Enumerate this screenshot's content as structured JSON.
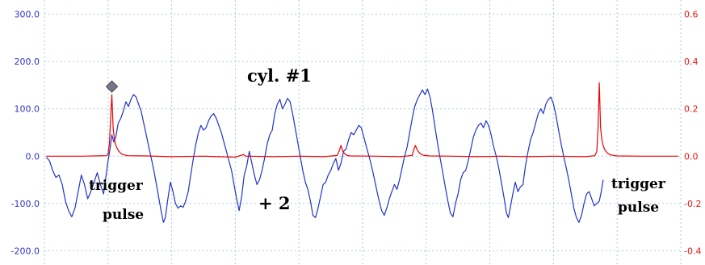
{
  "colors": {
    "left_axis": "#3333cc",
    "right_axis": "#ee1111",
    "series_blue": "#2233cc",
    "series_red": "#ee0000",
    "grid": "#aaccdd",
    "marker": "#777788"
  },
  "chart_data": {
    "type": "line",
    "title": "",
    "xlabel": "",
    "grid": true,
    "x_range": [
      0,
      100
    ],
    "left_axis": {
      "range": [
        -230,
        330
      ],
      "ticks": [
        300,
        200,
        100,
        0,
        -100,
        -200
      ],
      "tick_labels": [
        "300.0",
        "200.0",
        "100.0",
        "0.0",
        "-100.0",
        "-200.0"
      ]
    },
    "right_axis": {
      "range": [
        -0.46,
        0.66
      ],
      "ticks": [
        0.6,
        0.4,
        0.2,
        0.0,
        -0.2,
        -0.4
      ],
      "tick_labels": [
        "0.6",
        "0.4",
        "0.2",
        "0.0",
        "-0.2",
        "-0.4"
      ]
    },
    "series": [
      {
        "axis": "left",
        "color": "#2233cc",
        "points": [
          [
            0.3,
            -2
          ],
          [
            0.8,
            -10
          ],
          [
            1.3,
            -30
          ],
          [
            1.8,
            -45
          ],
          [
            2.3,
            -40
          ],
          [
            2.8,
            -60
          ],
          [
            3.3,
            -95
          ],
          [
            3.8,
            -115
          ],
          [
            4.3,
            -128
          ],
          [
            4.8,
            -110
          ],
          [
            5.3,
            -75
          ],
          [
            5.8,
            -40
          ],
          [
            6.3,
            -60
          ],
          [
            6.8,
            -90
          ],
          [
            7.3,
            -75
          ],
          [
            7.8,
            -55
          ],
          [
            8.3,
            -35
          ],
          [
            8.8,
            -60
          ],
          [
            9.3,
            -80
          ],
          [
            9.6,
            -50
          ],
          [
            10.0,
            -10
          ],
          [
            10.3,
            15
          ],
          [
            10.6,
            45
          ],
          [
            10.9,
            30
          ],
          [
            11.2,
            40
          ],
          [
            11.6,
            70
          ],
          [
            12.0,
            80
          ],
          [
            12.4,
            95
          ],
          [
            12.8,
            115
          ],
          [
            13.2,
            105
          ],
          [
            13.6,
            120
          ],
          [
            14.0,
            130
          ],
          [
            14.4,
            125
          ],
          [
            14.8,
            110
          ],
          [
            15.2,
            95
          ],
          [
            15.6,
            70
          ],
          [
            16.0,
            45
          ],
          [
            16.4,
            20
          ],
          [
            16.8,
            -5
          ],
          [
            17.2,
            -30
          ],
          [
            17.6,
            -60
          ],
          [
            18.0,
            -90
          ],
          [
            18.4,
            -120
          ],
          [
            18.7,
            -140
          ],
          [
            19.0,
            -130
          ],
          [
            19.4,
            -90
          ],
          [
            19.8,
            -55
          ],
          [
            20.2,
            -75
          ],
          [
            20.6,
            -100
          ],
          [
            21.0,
            -110
          ],
          [
            21.4,
            -105
          ],
          [
            21.8,
            -108
          ],
          [
            22.2,
            -95
          ],
          [
            22.6,
            -75
          ],
          [
            23.0,
            -40
          ],
          [
            23.4,
            -5
          ],
          [
            23.8,
            25
          ],
          [
            24.2,
            50
          ],
          [
            24.6,
            65
          ],
          [
            25.0,
            55
          ],
          [
            25.4,
            60
          ],
          [
            25.8,
            75
          ],
          [
            26.2,
            85
          ],
          [
            26.6,
            90
          ],
          [
            27.0,
            80
          ],
          [
            27.4,
            65
          ],
          [
            27.8,
            50
          ],
          [
            28.2,
            30
          ],
          [
            28.6,
            10
          ],
          [
            29.0,
            -10
          ],
          [
            29.4,
            -30
          ],
          [
            29.8,
            -60
          ],
          [
            30.2,
            -90
          ],
          [
            30.6,
            -115
          ],
          [
            31.0,
            -85
          ],
          [
            31.4,
            -40
          ],
          [
            31.8,
            -20
          ],
          [
            32.2,
            10
          ],
          [
            32.6,
            -15
          ],
          [
            33.0,
            -40
          ],
          [
            33.4,
            -60
          ],
          [
            33.8,
            -50
          ],
          [
            34.2,
            -30
          ],
          [
            34.6,
            -5
          ],
          [
            35.0,
            25
          ],
          [
            35.4,
            45
          ],
          [
            35.8,
            55
          ],
          [
            36.2,
            90
          ],
          [
            36.6,
            110
          ],
          [
            37.0,
            120
          ],
          [
            37.4,
            100
          ],
          [
            37.8,
            110
          ],
          [
            38.2,
            122
          ],
          [
            38.6,
            115
          ],
          [
            39.0,
            90
          ],
          [
            39.4,
            60
          ],
          [
            39.8,
            30
          ],
          [
            40.2,
            0
          ],
          [
            40.6,
            -30
          ],
          [
            41.0,
            -55
          ],
          [
            41.4,
            -70
          ],
          [
            41.8,
            -95
          ],
          [
            42.2,
            -125
          ],
          [
            42.6,
            -130
          ],
          [
            43.0,
            -110
          ],
          [
            43.4,
            -85
          ],
          [
            43.8,
            -60
          ],
          [
            44.2,
            -55
          ],
          [
            44.6,
            -40
          ],
          [
            45.0,
            -30
          ],
          [
            45.4,
            -15
          ],
          [
            45.8,
            -5
          ],
          [
            46.2,
            -30
          ],
          [
            46.6,
            -15
          ],
          [
            47.0,
            10
          ],
          [
            47.4,
            15
          ],
          [
            47.8,
            35
          ],
          [
            48.2,
            50
          ],
          [
            48.6,
            45
          ],
          [
            49.0,
            55
          ],
          [
            49.4,
            65
          ],
          [
            49.8,
            60
          ],
          [
            50.2,
            40
          ],
          [
            50.6,
            20
          ],
          [
            51.0,
            0
          ],
          [
            51.4,
            -20
          ],
          [
            51.8,
            -45
          ],
          [
            52.2,
            -70
          ],
          [
            52.6,
            -95
          ],
          [
            53.0,
            -115
          ],
          [
            53.4,
            -125
          ],
          [
            53.8,
            -110
          ],
          [
            54.2,
            -90
          ],
          [
            54.6,
            -75
          ],
          [
            55.0,
            -60
          ],
          [
            55.4,
            -70
          ],
          [
            55.8,
            -50
          ],
          [
            56.2,
            -25
          ],
          [
            56.6,
            0
          ],
          [
            57.0,
            20
          ],
          [
            57.4,
            50
          ],
          [
            57.8,
            80
          ],
          [
            58.2,
            105
          ],
          [
            58.6,
            120
          ],
          [
            59.0,
            130
          ],
          [
            59.4,
            140
          ],
          [
            59.8,
            130
          ],
          [
            60.2,
            142
          ],
          [
            60.6,
            125
          ],
          [
            61.0,
            95
          ],
          [
            61.4,
            60
          ],
          [
            61.8,
            25
          ],
          [
            62.2,
            -5
          ],
          [
            62.6,
            -35
          ],
          [
            63.0,
            -65
          ],
          [
            63.4,
            -95
          ],
          [
            63.8,
            -120
          ],
          [
            64.2,
            -128
          ],
          [
            64.6,
            -100
          ],
          [
            65.0,
            -80
          ],
          [
            65.4,
            -50
          ],
          [
            65.8,
            -35
          ],
          [
            66.2,
            -30
          ],
          [
            66.6,
            -10
          ],
          [
            67.0,
            15
          ],
          [
            67.4,
            40
          ],
          [
            67.8,
            55
          ],
          [
            68.2,
            65
          ],
          [
            68.6,
            70
          ],
          [
            69.0,
            60
          ],
          [
            69.4,
            75
          ],
          [
            69.8,
            65
          ],
          [
            70.2,
            45
          ],
          [
            70.6,
            20
          ],
          [
            71.0,
            0
          ],
          [
            71.4,
            -25
          ],
          [
            71.8,
            -55
          ],
          [
            72.2,
            -85
          ],
          [
            72.6,
            -120
          ],
          [
            72.9,
            -130
          ],
          [
            73.2,
            -110
          ],
          [
            73.6,
            -80
          ],
          [
            74.0,
            -55
          ],
          [
            74.4,
            -75
          ],
          [
            74.8,
            -65
          ],
          [
            75.2,
            -60
          ],
          [
            75.6,
            -20
          ],
          [
            76.0,
            10
          ],
          [
            76.4,
            35
          ],
          [
            76.8,
            50
          ],
          [
            77.2,
            70
          ],
          [
            77.6,
            90
          ],
          [
            78.0,
            100
          ],
          [
            78.4,
            90
          ],
          [
            78.8,
            110
          ],
          [
            79.2,
            120
          ],
          [
            79.6,
            125
          ],
          [
            80.0,
            110
          ],
          [
            80.4,
            85
          ],
          [
            80.8,
            55
          ],
          [
            81.2,
            25
          ],
          [
            81.6,
            0
          ],
          [
            82.0,
            -25
          ],
          [
            82.4,
            -50
          ],
          [
            82.8,
            -80
          ],
          [
            83.2,
            -110
          ],
          [
            83.6,
            -130
          ],
          [
            84.0,
            -140
          ],
          [
            84.4,
            -125
          ],
          [
            84.8,
            -100
          ],
          [
            85.2,
            -80
          ],
          [
            85.6,
            -75
          ],
          [
            86.0,
            -90
          ],
          [
            86.4,
            -105
          ],
          [
            86.8,
            -100
          ],
          [
            87.2,
            -95
          ],
          [
            87.5,
            -75
          ],
          [
            87.8,
            -50
          ]
        ]
      },
      {
        "axis": "right",
        "color": "#ee0000",
        "points": [
          [
            0.3,
            0.0
          ],
          [
            6.0,
            0.0
          ],
          [
            9.8,
            0.002
          ],
          [
            10.0,
            0.01
          ],
          [
            10.2,
            0.05
          ],
          [
            10.4,
            0.16
          ],
          [
            10.6,
            0.26
          ],
          [
            10.8,
            0.12
          ],
          [
            11.0,
            0.07
          ],
          [
            11.3,
            0.04
          ],
          [
            11.7,
            0.02
          ],
          [
            12.2,
            0.008
          ],
          [
            13.0,
            0.002
          ],
          [
            16.0,
            0.001
          ],
          [
            20.0,
            -0.002
          ],
          [
            25.0,
            0.0
          ],
          [
            30.0,
            -0.004
          ],
          [
            31.0,
            0.004
          ],
          [
            31.3,
            0.007
          ],
          [
            31.6,
            0.0
          ],
          [
            32.0,
            0.0
          ],
          [
            36.0,
            -0.002
          ],
          [
            40.0,
            0.0
          ],
          [
            44.0,
            -0.002
          ],
          [
            46.0,
            0.003
          ],
          [
            46.3,
            0.02
          ],
          [
            46.6,
            0.045
          ],
          [
            46.9,
            0.02
          ],
          [
            47.2,
            0.01
          ],
          [
            47.5,
            0.004
          ],
          [
            48.0,
            0.001
          ],
          [
            52.0,
            0.0
          ],
          [
            56.0,
            -0.002
          ],
          [
            57.8,
            0.003
          ],
          [
            58.0,
            0.025
          ],
          [
            58.3,
            0.045
          ],
          [
            58.6,
            0.025
          ],
          [
            59.0,
            0.012
          ],
          [
            59.5,
            0.004
          ],
          [
            60.5,
            0.001
          ],
          [
            64.0,
            0.0
          ],
          [
            68.0,
            -0.002
          ],
          [
            72.0,
            0.0
          ],
          [
            76.0,
            -0.002
          ],
          [
            80.0,
            0.0
          ],
          [
            85.0,
            -0.002
          ],
          [
            86.5,
            0.002
          ],
          [
            86.8,
            0.02
          ],
          [
            87.0,
            0.12
          ],
          [
            87.2,
            0.31
          ],
          [
            87.4,
            0.12
          ],
          [
            87.6,
            0.07
          ],
          [
            87.8,
            0.045
          ],
          [
            88.1,
            0.025
          ],
          [
            88.5,
            0.012
          ],
          [
            89.0,
            0.005
          ],
          [
            90.0,
            0.001
          ],
          [
            94.0,
            0.0
          ],
          [
            99.6,
            0.0
          ]
        ]
      }
    ],
    "marker": {
      "x": 10.6,
      "axis": "left",
      "value": 147
    }
  },
  "annotations": {
    "cyl": "cyl. #1",
    "plus2": "+ 2",
    "trigger_left_line1": "trigger",
    "trigger_left_line2": "pulse",
    "trigger_right_line1": "trigger",
    "trigger_right_line2": "pulse"
  }
}
